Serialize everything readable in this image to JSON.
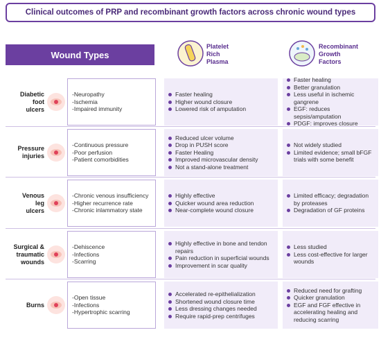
{
  "title": "Clinical outcomes of PRP and recombinant growth factors across chronic wound types",
  "header": {
    "wound_types": "Wound Types",
    "prp": [
      "Platelet",
      "Rich",
      "Plasma"
    ],
    "recombinant": [
      "Recombinant",
      "Growth",
      "Factors"
    ]
  },
  "rows": [
    {
      "label": [
        "Diabetic",
        "foot",
        "ulcers"
      ],
      "features": [
        "-Neuropathy",
        "-Ischemia",
        "-Impaired immunity"
      ],
      "prp": [
        "Faster healing",
        "Higher wound closure",
        "Lowered risk of amputation"
      ],
      "recombinant": [
        "Faster healing",
        "Better granulation",
        "Less useful in ischemic gangrene",
        "EGF: reduces sepsis/amputation",
        "PDGF: improves closure"
      ]
    },
    {
      "label": [
        "Pressure",
        "injuries"
      ],
      "features": [
        "-Continuous pressure",
        "-Poor perfusion",
        "-Patient comorbidities"
      ],
      "prp": [
        "Reduced ulcer volume",
        "Drop in PUSH score",
        "Faster Healing",
        "Improved microvascular density",
        "Not a stand-alone treatment"
      ],
      "recombinant": [
        "Not widely studied",
        "Limited evidence; small bFGF trials with some benefit"
      ]
    },
    {
      "label": [
        "Venous",
        "leg",
        "ulcers"
      ],
      "features": [
        "-Chronic venous insufficiency",
        "-Higher recurrence rate",
        "-Chronic inlammatory state"
      ],
      "prp": [
        "Highly effective",
        "Quicker wound area reduction",
        "Near-complete wound closure"
      ],
      "recombinant": [
        "Limited efficacy; degradation by proteases",
        "Degradation of GF proteins"
      ]
    },
    {
      "label": [
        "Surgical &",
        "traumatic",
        "wounds"
      ],
      "features": [
        "-Dehiscence",
        "-Infections",
        "-Scarring"
      ],
      "prp": [
        "Highly effective in bone and tendon repairs",
        "Pain reduction in superficial wounds",
        "Improvement in scar quality"
      ],
      "recombinant": [
        "Less studied",
        "Less cost-effective for larger wounds"
      ]
    },
    {
      "label": [
        "Burns"
      ],
      "features": [
        "-Open tissue",
        "-Infections",
        "-Hypertrophic scarring"
      ],
      "prp": [
        "Accelerated re-epithelialization",
        "Shortened wound closure time",
        "Less dressing changes needed",
        "Require rapid-prep centrifuges"
      ],
      "recombinant": [
        "Reduced need for grafting",
        "Quicker granulation",
        "EGF and FGF effective in accelerating healing and reducing scarring"
      ]
    }
  ]
}
